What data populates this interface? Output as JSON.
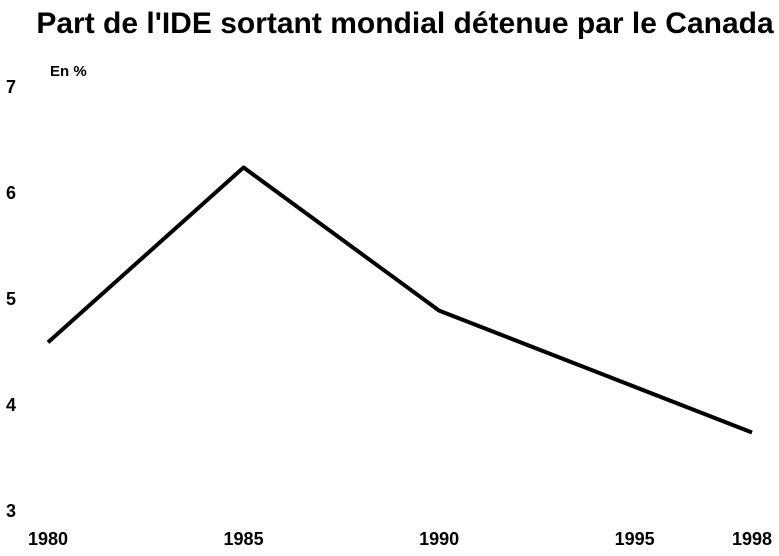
{
  "chart_data": {
    "type": "line",
    "title": "Part de l'IDE sortant mondial détenue par le Canada",
    "y_label": "En %",
    "x": [
      1980,
      1985,
      1990,
      1998
    ],
    "series": [
      {
        "name": "Canada",
        "color": "#000000",
        "values": [
          4.6,
          6.25,
          4.9,
          3.75
        ]
      }
    ],
    "xlim": [
      1980,
      1998
    ],
    "xticks": [
      1980,
      1985,
      1990,
      1995,
      1998
    ],
    "ylim": [
      3,
      7
    ],
    "yticks": [
      3,
      4,
      5,
      6,
      7
    ],
    "grid": false
  }
}
